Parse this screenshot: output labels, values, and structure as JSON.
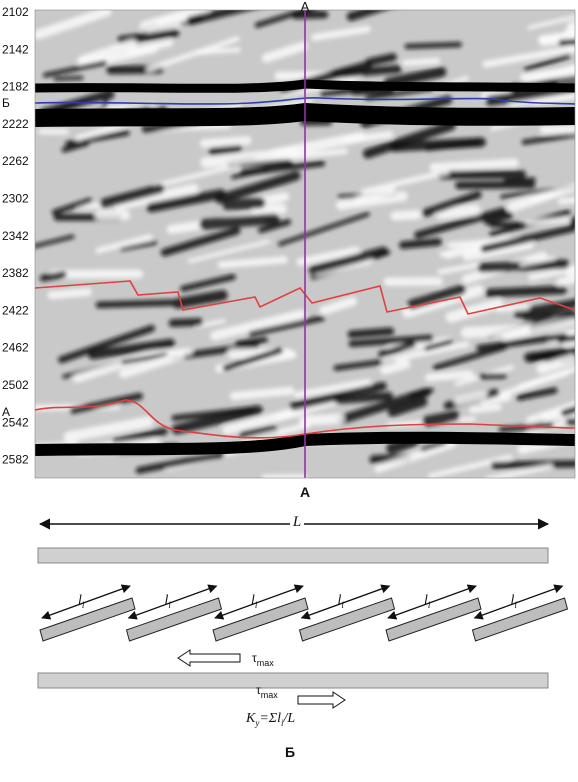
{
  "figure": {
    "panel_a": {
      "marker_top": "A",
      "depth_labels": [
        2102,
        2142,
        2182,
        2222,
        2262,
        2302,
        2342,
        2382,
        2422,
        2462,
        2502,
        2542,
        2582
      ],
      "horizon_labels": [
        "Б",
        "A"
      ],
      "caption": "А"
    },
    "panel_b": {
      "length_label": "L",
      "segment_labels": [
        {
          "main": "l",
          "sub": "i"
        },
        {
          "main": "l",
          "sub": "i"
        },
        {
          "main": "l",
          "sub": "i"
        },
        {
          "main": "l",
          "sub": "i"
        },
        {
          "main": "l",
          "sub": "i"
        },
        {
          "main": "l",
          "sub": "i"
        }
      ],
      "stress_labels": [
        {
          "symbol": "τ",
          "sub": "max"
        },
        {
          "symbol": "τ",
          "sub": "max"
        }
      ],
      "formula": {
        "k": "K",
        "k_sub": "y",
        "middle": "=Σl",
        "l_sub": "i",
        "end": "/L"
      },
      "caption": "Б"
    }
  }
}
